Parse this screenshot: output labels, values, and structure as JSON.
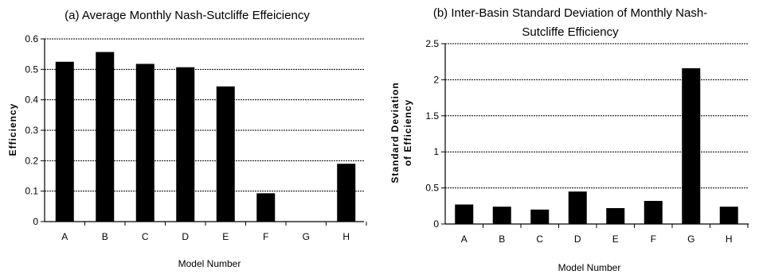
{
  "chart_data": [
    {
      "type": "bar",
      "title": "(a) Average Monthly Nash-Sutcliffe Effeiciency",
      "xlabel": "Model Number",
      "ylabel": "Efficiency",
      "categories": [
        "A",
        "B",
        "C",
        "D",
        "E",
        "F",
        "G",
        "H"
      ],
      "values": [
        0.525,
        0.557,
        0.518,
        0.507,
        0.444,
        0.093,
        0,
        0.19
      ],
      "ylim": [
        0,
        0.6
      ],
      "yticks": [
        "0",
        "0.1",
        "0.2",
        "0.3",
        "0.4",
        "0.5",
        "0.6"
      ],
      "grid": true,
      "bar_color": "#000000"
    },
    {
      "type": "bar",
      "title_lines": [
        "(b) Inter-Basin Standard Deviation of Monthly Nash-",
        "Sutcliffe Efficiency"
      ],
      "xlabel": "Model Number",
      "ylabel_lines": [
        "Standard Deviation",
        "of Efficiency"
      ],
      "categories": [
        "A",
        "B",
        "C",
        "D",
        "E",
        "F",
        "G",
        "H"
      ],
      "values": [
        0.27,
        0.24,
        0.2,
        0.45,
        0.22,
        0.32,
        2.16,
        0.24
      ],
      "ylim": [
        0,
        2.5
      ],
      "yticks": [
        "0",
        "0.5",
        "1",
        "1.5",
        "2",
        "2.5"
      ],
      "grid": true,
      "bar_color": "#000000"
    }
  ]
}
